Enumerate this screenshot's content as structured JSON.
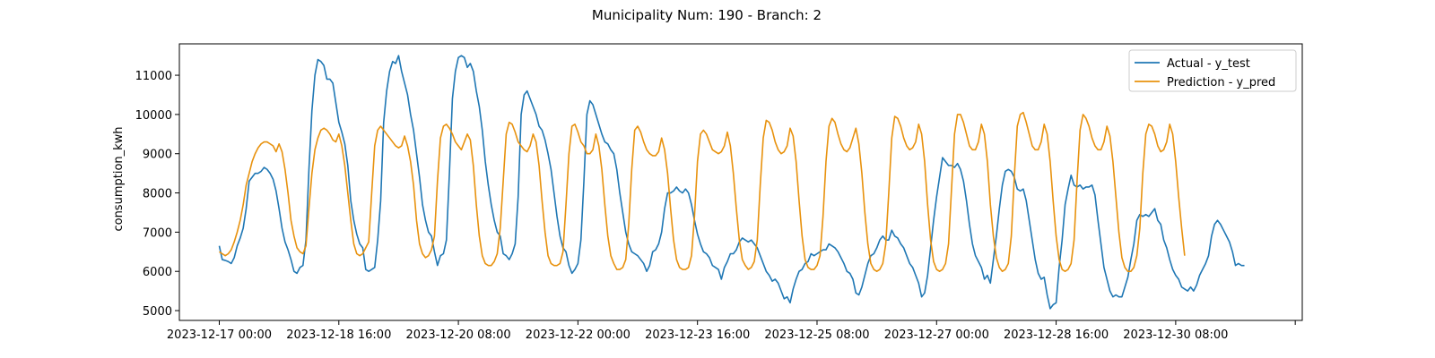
{
  "chart_data": {
    "type": "line",
    "title": "Municipality Num: 190 - Branch: 2",
    "xlabel": "",
    "ylabel": "consumption_kwh",
    "x_start": "2023-12-17 00:00",
    "x_step_hours": 4,
    "xlim_steps": [
      -13.35,
      280.35
    ],
    "ylim": [
      4750,
      11800
    ],
    "y_ticks": [
      5000,
      6000,
      7000,
      8000,
      9000,
      10000,
      11000
    ],
    "x_ticks": [
      {
        "step": 0,
        "label": "2023-12-17 00:00"
      },
      {
        "step": 40,
        "label": "2023-12-18 16:00"
      },
      {
        "step": 80,
        "label": "2023-12-20 08:00"
      },
      {
        "step": 120,
        "label": "2023-12-22 00:00"
      },
      {
        "step": 160,
        "label": "2023-12-23 16:00"
      },
      {
        "step": 200,
        "label": "2023-12-25 08:00"
      },
      {
        "step": 240,
        "label": "2023-12-27 00:00"
      },
      {
        "step": 280,
        "label": "2023-12-28 16:00"
      },
      {
        "step": 320,
        "label": "2023-12-30 08:00"
      },
      {
        "step": 360,
        "label": ""
      }
    ],
    "grid": false,
    "legend_position": "top-right",
    "series": [
      {
        "name": "Actual - y_test",
        "color": "#1f77b4",
        "values": [
          6650,
          6300,
          6280,
          6250,
          6200,
          6350,
          6650,
          6850,
          7100,
          7600,
          8300,
          8400,
          8500,
          8500,
          8550,
          8650,
          8600,
          8500,
          8350,
          8050,
          7600,
          7100,
          6750,
          6550,
          6300,
          6000,
          5950,
          6100,
          6150,
          6800,
          8600,
          10100,
          11000,
          11400,
          11350,
          11250,
          10900,
          10900,
          10800,
          10300,
          9800,
          9550,
          9250,
          8700,
          7800,
          7300,
          6950,
          6700,
          6600,
          6050,
          6000,
          6050,
          6100,
          6800,
          7800,
          9800,
          10600,
          11100,
          11350,
          11300,
          11500,
          11100,
          10800,
          10500,
          10000,
          9600,
          9000,
          8400,
          7700,
          7300,
          7000,
          6900,
          6500,
          6150,
          6400,
          6450,
          6800,
          8500,
          10400,
          11100,
          11450,
          11500,
          11450,
          11200,
          11300,
          11100,
          10600,
          10200,
          9600,
          8800,
          8200,
          7700,
          7300,
          7000,
          6900,
          6450,
          6400,
          6300,
          6450,
          6700,
          7900,
          10000,
          10500,
          10600,
          10400,
          10200,
          10000,
          9700,
          9600,
          9350,
          9000,
          8600,
          8000,
          7400,
          6900,
          6600,
          6500,
          6150,
          5950,
          6050,
          6200,
          6800,
          8300,
          10000,
          10350,
          10250,
          10000,
          9750,
          9500,
          9300,
          9250,
          9100,
          9000,
          8600,
          8000,
          7500,
          7000,
          6700,
          6500,
          6450,
          6400,
          6300,
          6200,
          6000,
          6150,
          6500,
          6550,
          6700,
          7000,
          7600,
          8000,
          8000,
          8050,
          8150,
          8050,
          8000,
          8100,
          8000,
          7700,
          7300,
          6950,
          6700,
          6500,
          6450,
          6350,
          6150,
          6100,
          6050,
          5800,
          6100,
          6250,
          6450,
          6450,
          6550,
          6750,
          6850,
          6800,
          6750,
          6800,
          6700,
          6600,
          6400,
          6200,
          6000,
          5900,
          5750,
          5800,
          5700,
          5500,
          5300,
          5350,
          5200,
          5550,
          5800,
          6000,
          6050,
          6200,
          6250,
          6450,
          6400,
          6450,
          6500,
          6550,
          6550,
          6700,
          6650,
          6600,
          6500,
          6350,
          6200,
          6000,
          5950,
          5800,
          5450,
          5400,
          5600,
          5900,
          6200,
          6400,
          6450,
          6600,
          6800,
          6900,
          6800,
          6800,
          7050,
          6900,
          6850,
          6700,
          6600,
          6400,
          6200,
          6100,
          5900,
          5700,
          5350,
          5450,
          5900,
          6600,
          7300,
          7900,
          8400,
          8900,
          8800,
          8700,
          8700,
          8650,
          8750,
          8600,
          8300,
          7800,
          7200,
          6700,
          6400,
          6250,
          6100,
          5800,
          5900,
          5700,
          6300,
          6900,
          7600,
          8200,
          8550,
          8600,
          8550,
          8400,
          8100,
          8050,
          8100,
          7800,
          7300,
          6800,
          6300,
          5950,
          5800,
          5850,
          5400,
          5050,
          5150,
          5200,
          6100,
          6800,
          7700,
          8100,
          8450,
          8200,
          8150,
          8200,
          8100,
          8150,
          8150,
          8200,
          7950,
          7300,
          6700,
          6100,
          5800,
          5500,
          5350,
          5400,
          5350,
          5350,
          5600,
          5850,
          6300,
          6700,
          7300,
          7450,
          7400,
          7450,
          7400,
          7500,
          7600,
          7300,
          7200,
          6800,
          6600,
          6300,
          6050,
          5900,
          5800,
          5600,
          5550,
          5500,
          5600,
          5500,
          5650,
          5900,
          6050,
          6200,
          6400,
          6900,
          7200,
          7300,
          7200,
          7050,
          6900,
          6750,
          6500,
          6150,
          6200,
          6150,
          6150
        ]
      },
      {
        "name": "Prediction - y_pred",
        "color": "#e8920e",
        "values": [
          6500,
          6450,
          6400,
          6450,
          6550,
          6750,
          7000,
          7300,
          7700,
          8200,
          8500,
          8800,
          9000,
          9150,
          9250,
          9300,
          9300,
          9250,
          9200,
          9050,
          9250,
          9050,
          8600,
          8000,
          7300,
          6900,
          6600,
          6500,
          6450,
          6650,
          7600,
          8500,
          9100,
          9400,
          9600,
          9650,
          9600,
          9500,
          9350,
          9300,
          9500,
          9200,
          8700,
          8000,
          7300,
          6700,
          6450,
          6400,
          6450,
          6600,
          6750,
          8000,
          9200,
          9600,
          9700,
          9600,
          9500,
          9400,
          9300,
          9200,
          9150,
          9200,
          9450,
          9200,
          8800,
          8200,
          7300,
          6700,
          6450,
          6350,
          6400,
          6550,
          6900,
          8300,
          9400,
          9700,
          9750,
          9650,
          9500,
          9300,
          9200,
          9100,
          9300,
          9500,
          9350,
          8700,
          7700,
          6900,
          6400,
          6200,
          6150,
          6150,
          6250,
          6450,
          7100,
          8300,
          9500,
          9800,
          9750,
          9550,
          9300,
          9200,
          9100,
          9050,
          9200,
          9500,
          9300,
          8700,
          7800,
          7000,
          6400,
          6200,
          6150,
          6150,
          6200,
          6500,
          7700,
          9000,
          9700,
          9750,
          9550,
          9300,
          9200,
          9000,
          9000,
          9100,
          9500,
          9200,
          8600,
          7700,
          6900,
          6400,
          6200,
          6050,
          6050,
          6100,
          6300,
          7200,
          8600,
          9600,
          9700,
          9550,
          9300,
          9100,
          9000,
          8950,
          8950,
          9050,
          9400,
          9100,
          8500,
          7600,
          6800,
          6300,
          6100,
          6050,
          6050,
          6100,
          6400,
          7400,
          8800,
          9500,
          9600,
          9500,
          9300,
          9100,
          9050,
          9000,
          9050,
          9200,
          9550,
          9200,
          8500,
          7600,
          6800,
          6300,
          6150,
          6050,
          6100,
          6250,
          6800,
          8200,
          9400,
          9850,
          9800,
          9600,
          9300,
          9100,
          9000,
          9050,
          9200,
          9650,
          9450,
          8800,
          7800,
          6900,
          6300,
          6100,
          6050,
          6050,
          6150,
          6400,
          7400,
          8800,
          9700,
          9900,
          9800,
          9500,
          9250,
          9100,
          9050,
          9150,
          9400,
          9650,
          9250,
          8500,
          7500,
          6700,
          6200,
          6050,
          6000,
          6050,
          6200,
          6700,
          8000,
          9400,
          9950,
          9900,
          9700,
          9400,
          9200,
          9100,
          9150,
          9300,
          9750,
          9500,
          8800,
          7700,
          6800,
          6250,
          6050,
          6000,
          6050,
          6200,
          6700,
          8100,
          9500,
          10000,
          10000,
          9800,
          9500,
          9200,
          9100,
          9100,
          9300,
          9750,
          9500,
          8800,
          7700,
          6900,
          6350,
          6100,
          6000,
          6050,
          6200,
          6900,
          8400,
          9700,
          10000,
          10050,
          9800,
          9500,
          9200,
          9100,
          9100,
          9300,
          9750,
          9500,
          8800,
          7800,
          6900,
          6300,
          6050,
          6000,
          6050,
          6200,
          6800,
          8300,
          9600,
          10000,
          9900,
          9700,
          9400,
          9200,
          9100,
          9100,
          9300,
          9700,
          9450,
          8800,
          7900,
          7000,
          6350,
          6100,
          6000,
          6000,
          6100,
          6400,
          7100,
          8500,
          9500,
          9750,
          9700,
          9500,
          9200,
          9050,
          9100,
          9300,
          9750,
          9500,
          8800,
          7900,
          7100,
          6400
        ]
      }
    ]
  }
}
